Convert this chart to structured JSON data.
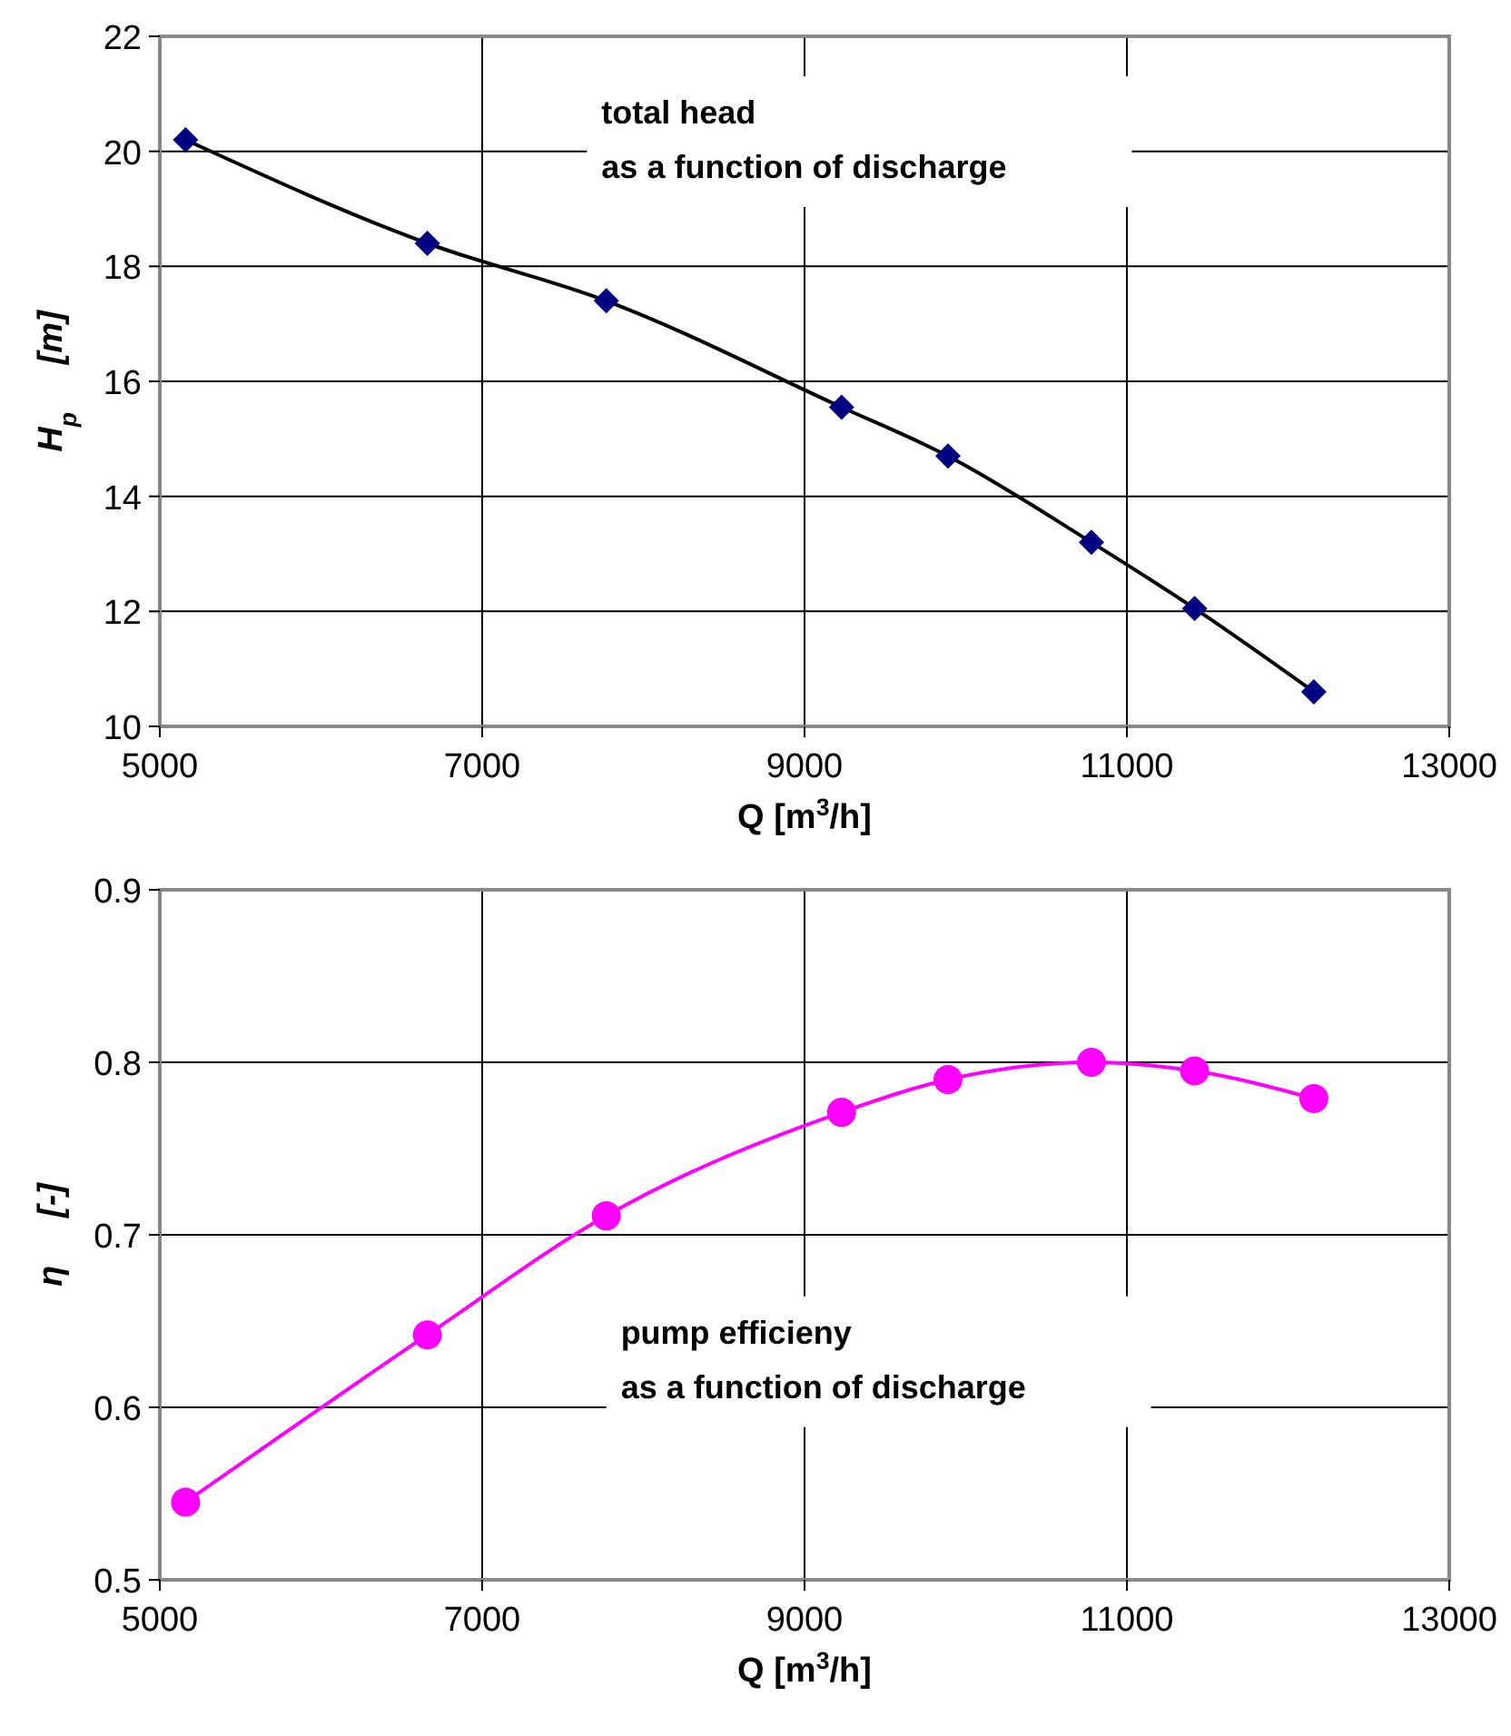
{
  "chart_data": [
    {
      "type": "line",
      "xlabel": "Q [m$^{3}$/h]",
      "ylabel": "H$_{p}$     [m]",
      "x": [
        5160,
        6660,
        7770,
        9230,
        9890,
        10780,
        11420,
        12160
      ],
      "series": [
        {
          "color": "#000000",
          "marker": "none",
          "values": [
            20.2,
            18.4,
            17.4,
            15.55,
            14.7,
            13.2,
            12.05,
            10.6
          ]
        },
        {
          "type": "scatter",
          "color": "#000080",
          "marker": "diamond",
          "values": [
            20.2,
            18.4,
            17.4,
            15.55,
            14.7,
            13.2,
            12.05,
            10.6
          ]
        }
      ],
      "xlim": [
        5000,
        13000
      ],
      "xticks": [
        5000,
        7000,
        9000,
        11000,
        13000
      ],
      "ylim": [
        10,
        22
      ],
      "yticks": [
        10,
        12,
        14,
        16,
        18,
        20,
        22
      ],
      "grid": true,
      "annotations": [
        "total head\nas a function of discharge"
      ]
    },
    {
      "type": "line",
      "xlabel": "Q [m$^{3}$/h]",
      "ylabel": "η     [-]",
      "x": [
        5160,
        6660,
        7770,
        9230,
        9890,
        10780,
        11420,
        12160
      ],
      "series": [
        {
          "color": "#ff00ff",
          "values": [
            0.545,
            0.642,
            0.711,
            0.771,
            0.79,
            0.8,
            0.795,
            0.779
          ]
        }
      ],
      "marker": "circle",
      "xlim": [
        5000,
        13000
      ],
      "xticks": [
        5000,
        7000,
        9000,
        11000,
        13000
      ],
      "ylim": [
        0.5,
        0.9
      ],
      "yticks": [
        0.5,
        0.6,
        0.7,
        0.8,
        0.9
      ],
      "grid": true,
      "annotations": [
        "pump efficieny\nas a function of discharge"
      ]
    }
  ]
}
